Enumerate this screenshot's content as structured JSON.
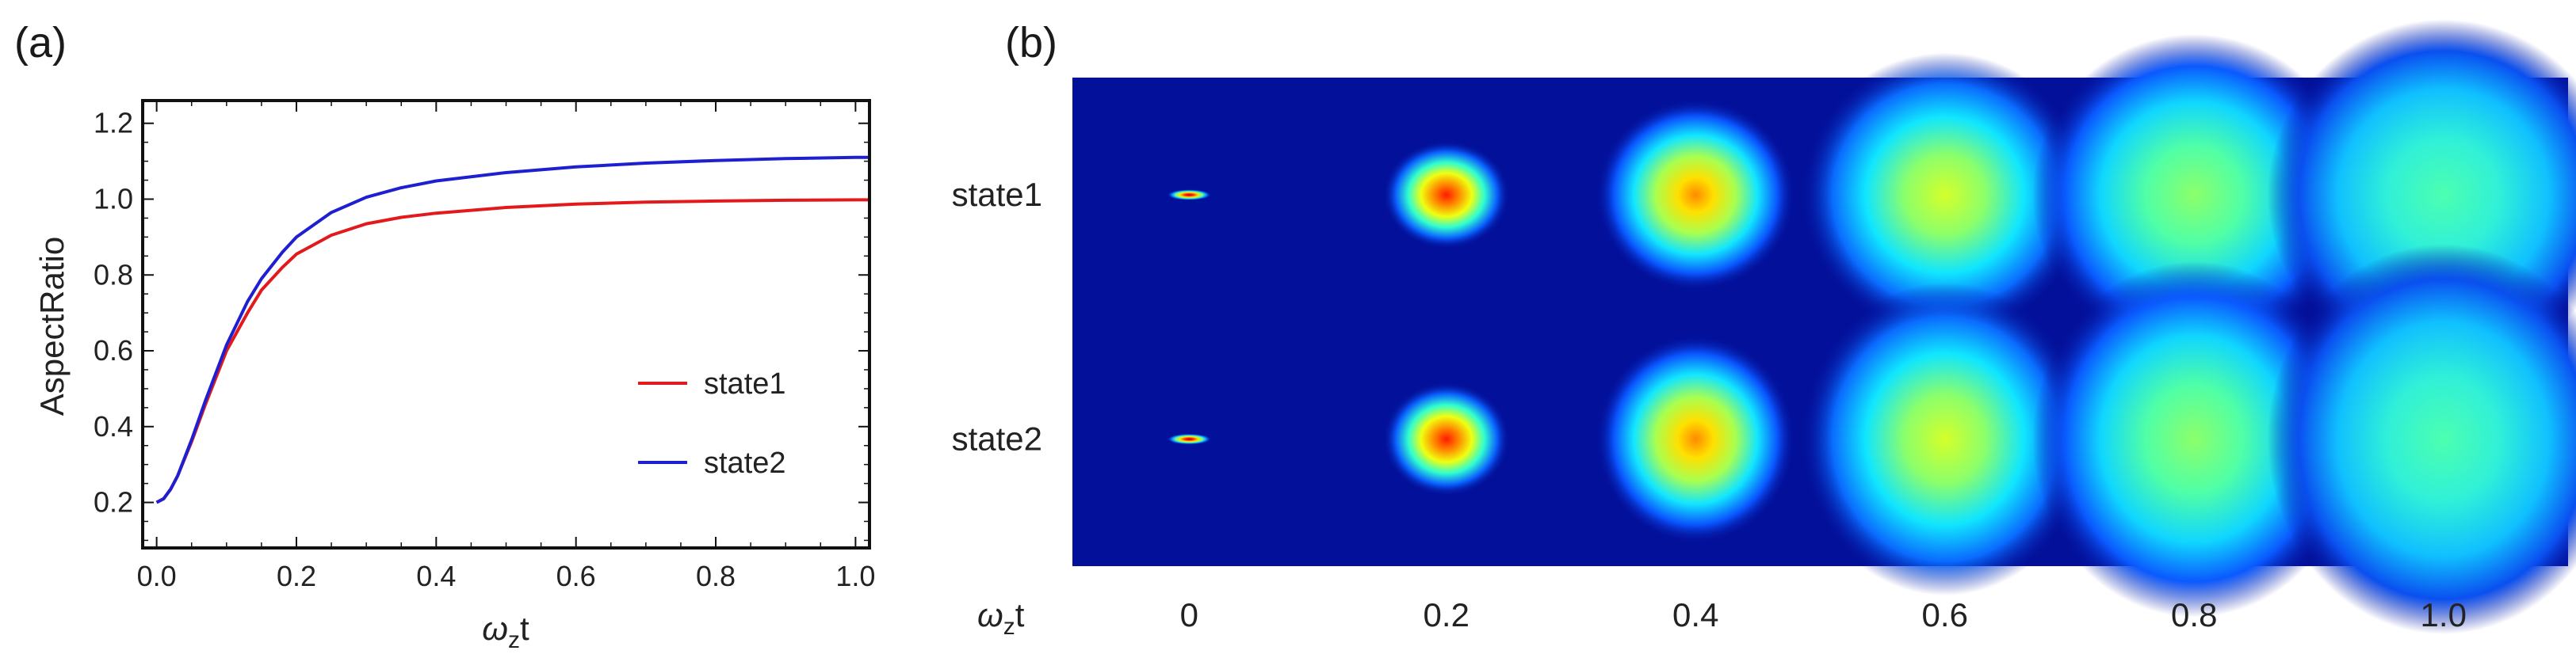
{
  "panel_a": {
    "label": "(a)",
    "chart_data": {
      "type": "line",
      "xlabel": "ω_z t",
      "ylabel": "AspectRatio",
      "xlim": [
        -0.02,
        1.02
      ],
      "ylim": [
        0.08,
        1.26
      ],
      "xticks": [
        "0.0",
        "0.2",
        "0.4",
        "0.6",
        "0.8",
        "1.0"
      ],
      "xtick_values": [
        0.0,
        0.2,
        0.4,
        0.6,
        0.8,
        1.0
      ],
      "yticks": [
        "0.2",
        "0.4",
        "0.6",
        "0.8",
        "1.0",
        "1.2"
      ],
      "ytick_values": [
        0.2,
        0.4,
        0.6,
        0.8,
        1.0,
        1.2
      ],
      "legend_placement": "bottom-right",
      "series": [
        {
          "name": "state1",
          "color": "#e31a1c",
          "x": [
            0.0,
            0.01,
            0.02,
            0.03,
            0.05,
            0.07,
            0.1,
            0.13,
            0.15,
            0.18,
            0.2,
            0.25,
            0.3,
            0.35,
            0.4,
            0.5,
            0.6,
            0.7,
            0.8,
            0.9,
            1.0,
            1.02
          ],
          "y": [
            0.2,
            0.21,
            0.235,
            0.27,
            0.36,
            0.46,
            0.6,
            0.7,
            0.76,
            0.82,
            0.855,
            0.905,
            0.935,
            0.952,
            0.963,
            0.978,
            0.987,
            0.992,
            0.995,
            0.997,
            0.998,
            0.998
          ]
        },
        {
          "name": "state2",
          "color": "#1f1fd2",
          "x": [
            0.0,
            0.01,
            0.02,
            0.03,
            0.05,
            0.07,
            0.1,
            0.13,
            0.15,
            0.18,
            0.2,
            0.25,
            0.3,
            0.35,
            0.4,
            0.5,
            0.6,
            0.7,
            0.8,
            0.9,
            1.0,
            1.02
          ],
          "y": [
            0.2,
            0.21,
            0.235,
            0.27,
            0.365,
            0.47,
            0.615,
            0.73,
            0.79,
            0.86,
            0.9,
            0.965,
            1.005,
            1.03,
            1.048,
            1.07,
            1.085,
            1.095,
            1.102,
            1.107,
            1.11,
            1.11
          ]
        }
      ]
    }
  },
  "panel_b": {
    "label": "(b)",
    "chart_data": {
      "type": "heatmap",
      "x_axis_label": "ω_z t",
      "rows": [
        "state1",
        "state2"
      ],
      "columns": [
        "0",
        "0.2",
        "0.4",
        "0.6",
        "0.8",
        "1.0"
      ],
      "colormap": "jet",
      "background": "#03109a",
      "aspect_ratio": [
        [
          0.2,
          0.855,
          0.963,
          0.987,
          0.995,
          0.998
        ],
        [
          0.2,
          0.9,
          1.048,
          1.085,
          1.102,
          1.11
        ]
      ],
      "peak_color_level": [
        [
          1.0,
          0.93,
          0.8,
          0.62,
          0.52,
          0.46
        ],
        [
          1.0,
          0.92,
          0.79,
          0.63,
          0.53,
          0.47
        ]
      ]
    }
  }
}
